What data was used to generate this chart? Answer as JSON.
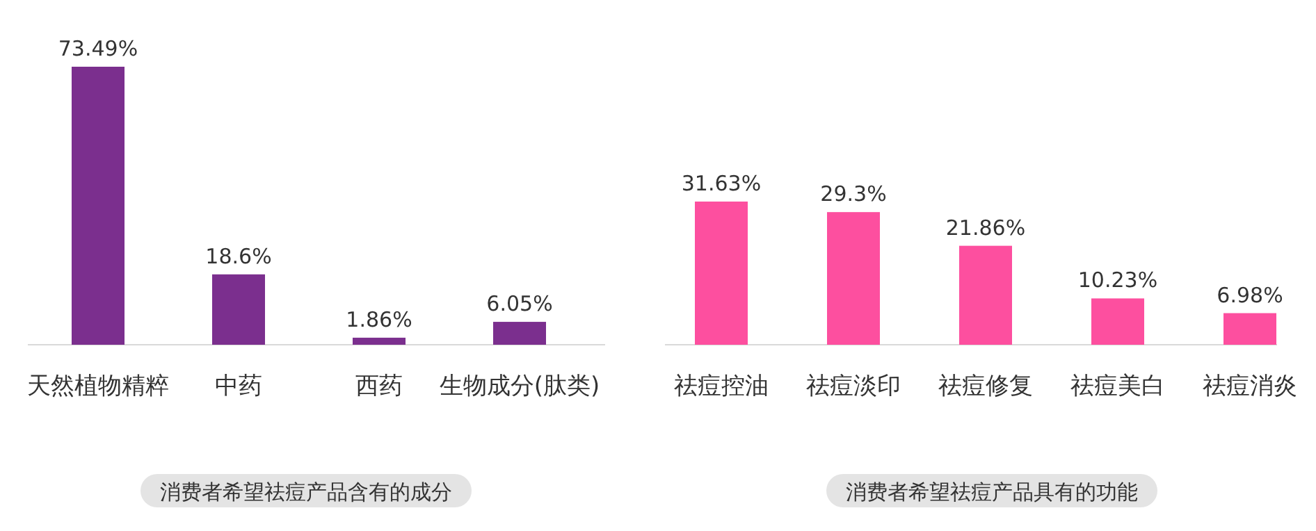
{
  "chart_data": [
    {
      "type": "bar",
      "title": "消费者希望祛痘产品含有的成分",
      "categories": [
        "天然植物精粹",
        "中药",
        "西药",
        "生物成分(肽类)"
      ],
      "values": [
        73.49,
        18.6,
        1.86,
        6.05
      ],
      "value_labels": [
        "73.49%",
        "18.6%",
        "1.86%",
        "6.05%"
      ],
      "color": "#7b2f8e"
    },
    {
      "type": "bar",
      "title": "消费者希望祛痘产品具有的功能",
      "categories": [
        "祛痘控油",
        "祛痘淡印",
        "祛痘修复",
        "祛痘美白",
        "祛痘消炎"
      ],
      "values": [
        31.63,
        29.3,
        21.86,
        10.23,
        6.98
      ],
      "value_labels": [
        "31.63%",
        "29.3%",
        "21.86%",
        "10.23%",
        "6.98%"
      ],
      "color": "#fd4f9f"
    }
  ]
}
